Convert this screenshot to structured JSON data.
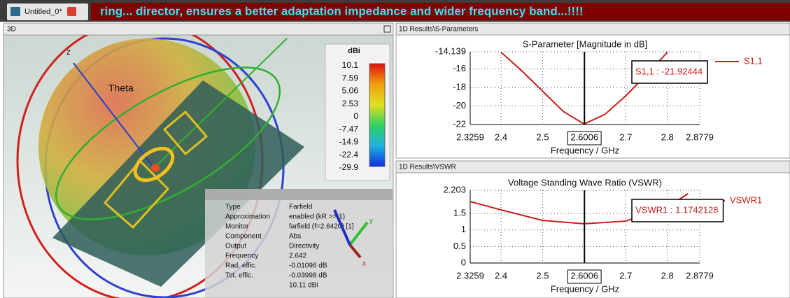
{
  "tab": {
    "title": "Untitled_0*",
    "marquee": "ring... director, ensures a better adaptation impedance and wider frequency band...!!!!"
  },
  "panel_3d": {
    "title": "3D",
    "axis_z": "z",
    "axis_y": "y",
    "axis_x": "x",
    "theta": "Theta",
    "colorbar": {
      "unit": "dBi",
      "labels": [
        "10.1",
        "7.59",
        "5.06",
        "2.53",
        "0",
        "-7.47",
        "-14.9",
        "-22.4",
        "-29.9"
      ]
    },
    "info": {
      "rows": [
        [
          "Type",
          "Farfield"
        ],
        [
          "Approximation",
          "enabled (kR >> 1)"
        ],
        [
          "Monitor",
          "farfield (f=2.6420) [1]"
        ],
        [
          "Component",
          "Abs"
        ],
        [
          "Output",
          "Directivity"
        ],
        [
          "Frequency",
          "2.642"
        ],
        [
          "Rad. effic.",
          "-0.01096 dB"
        ],
        [
          "Tot. effic.",
          "-0.03998 dB"
        ]
      ],
      "summary": "10.11 dBi"
    }
  },
  "panels": [
    "1D Results\\S-Parameters",
    "1D Results\\VSWR"
  ],
  "chart_data": [
    {
      "type": "line",
      "title": "S-Parameter [Magnitude in dB]",
      "x_label": "Frequency / GHz",
      "x": [
        2.4,
        2.45,
        2.5,
        2.55,
        2.6,
        2.65,
        2.7,
        2.75,
        2.8
      ],
      "series": [
        {
          "name": "S1,1",
          "color": "#c8201a",
          "values": [
            -14.2,
            -16.2,
            -18.4,
            -20.6,
            -21.95,
            -20.9,
            -18.9,
            -16.6,
            -14.2
          ]
        }
      ],
      "xlim": [
        2.3259,
        2.8779
      ],
      "xticks": [
        2.3259,
        2.4,
        2.5,
        2.6006,
        2.7,
        2.8,
        2.8779
      ],
      "ylim": [
        -22,
        -14.139
      ],
      "yticks": [
        -14.139,
        -16,
        -18,
        -20,
        -22
      ],
      "grid": true,
      "marker": {
        "x": 2.6006,
        "label": "S1,1 : -21.92444"
      }
    },
    {
      "type": "line",
      "title": "Voltage Standing Wave Ratio (VSWR)",
      "x_label": "Frequency / GHz",
      "x": [
        2.3259,
        2.4,
        2.5,
        2.6,
        2.7,
        2.8,
        2.85
      ],
      "series": [
        {
          "name": "VSWR1",
          "color": "#c8201a",
          "values": [
            1.86,
            1.61,
            1.29,
            1.19,
            1.27,
            1.7,
            2.1
          ]
        }
      ],
      "xlim": [
        2.3259,
        2.8779
      ],
      "xticks": [
        2.3259,
        2.4,
        2.5,
        2.6006,
        2.7,
        2.8,
        2.8779
      ],
      "ylim": [
        0,
        2.203
      ],
      "yticks": [
        2.203,
        1.5,
        1,
        0.5,
        0
      ],
      "grid": true,
      "marker": {
        "x": 2.6006,
        "label": "VSWR1 : 1.1742128"
      }
    }
  ]
}
